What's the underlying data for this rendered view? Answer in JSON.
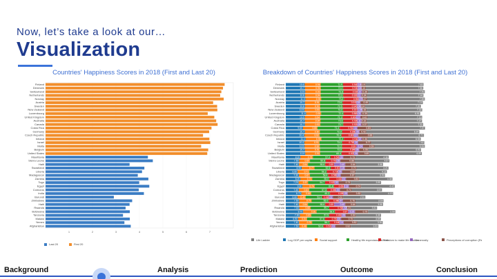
{
  "header": {
    "subtitle": "Now, let’s take a look at our…",
    "title": "Visualization"
  },
  "nav": {
    "items": [
      "Background",
      "Analysis",
      "Prediction",
      "Outcome",
      "Conclusion"
    ]
  },
  "colors": {
    "first20": "#f28e2b",
    "last20": "#3b7dc4",
    "components": [
      "#7f7f7f",
      "#1f77b4",
      "#ff7f0e",
      "#2ca02c",
      "#d62728",
      "#9467bd",
      "#8c564b"
    ]
  },
  "chart_data": [
    {
      "type": "bar",
      "orientation": "horizontal",
      "title": "Countries' Happiness Scores in 2018 (First and Last 20)",
      "xlim": [
        0,
        8
      ],
      "xticks": [
        1,
        2,
        3,
        4,
        5,
        6,
        7
      ],
      "legend_placement": "bottom-left",
      "series": [
        {
          "name": "Last 20",
          "color": "#3b7dc4"
        },
        {
          "name": "First 20",
          "color": "#f28e2b"
        }
      ],
      "categories": [
        "Finland",
        "Denmark",
        "Switzerland",
        "Netherlands",
        "Norway",
        "Austria",
        "Sweden",
        "New Zealand",
        "Luxembourg",
        "United Kingdom",
        "Australia",
        "Canada",
        "Costa Rica",
        "Germany",
        "Czech Republic",
        "Ireland",
        "Israel",
        "Malta",
        "Belgium",
        "United States",
        "Mauritania",
        "Sierra Leone",
        "Haiti",
        "Swaziland",
        "Liberia",
        "Madagascar",
        "Zambia",
        "Togo",
        "Egypt",
        "Comoros",
        "India",
        "Burundi",
        "Zimbabwe",
        "Haiti",
        "Rwanda",
        "Botswana",
        "Tanzania",
        "Malawi",
        "Yemen",
        "Afghanistan"
      ],
      "values": [
        7.63,
        7.56,
        7.49,
        7.44,
        7.59,
        7.14,
        7.31,
        7.32,
        6.91,
        7.19,
        7.27,
        7.33,
        7.07,
        6.97,
        6.71,
        6.98,
        7.02,
        6.63,
        6.93,
        6.89,
        4.36,
        4.57,
        3.58,
        4.21,
        4.11,
        3.93,
        4.38,
        3.99,
        4.42,
        3.97,
        4.19,
        2.91,
        3.69,
        3.58,
        3.41,
        3.59,
        3.3,
        3.59,
        3.36,
        3.63
      ]
    },
    {
      "type": "bar",
      "orientation": "horizontal",
      "stacked": true,
      "title": "Breakdown of Countries' Happiness Scores in 2018 (First and Last 20)",
      "legend_placement": "bottom",
      "categories": [
        "Finland",
        "Denmark",
        "Switzerland",
        "Netherlands",
        "Norway",
        "Austria",
        "Sweden",
        "New Zealand",
        "Luxembourg",
        "United Kingdom",
        "Australia",
        "Canada",
        "Costa Rica",
        "Germany",
        "Czech Republic",
        "Ireland",
        "Israel",
        "Malta",
        "Belgium",
        "United States",
        "Mauritania",
        "Sierra Leone",
        "Haiti",
        "Swaziland",
        "Liberia",
        "Madagascar",
        "Zambia",
        "Togo",
        "Egypt",
        "Comoros",
        "India",
        "Burundi",
        "Zimbabwe",
        "Haiti",
        "Rwanda",
        "Botswana",
        "Tanzania",
        "Malawi",
        "Yemen",
        "Afghanistan"
      ],
      "series": [
        {
          "name": "Life Ladder",
          "values": [
            7.63,
            7.56,
            7.49,
            7.44,
            7.59,
            7.14,
            7.31,
            7.32,
            6.91,
            7.19,
            7.27,
            7.33,
            7.07,
            6.97,
            6.71,
            6.98,
            7.02,
            6.63,
            6.93,
            6.89,
            4.36,
            4.57,
            3.58,
            4.21,
            4.11,
            3.93,
            4.38,
            3.99,
            4.42,
            3.97,
            4.19,
            2.91,
            3.69,
            3.58,
            3.41,
            3.59,
            3.3,
            3.59,
            3.36,
            3.63
          ]
        },
        {
          "name": "Log GDP per capita",
          "values": [
            10.6,
            10.7,
            10.9,
            10.8,
            11.0,
            10.7,
            10.8,
            10.5,
            11.4,
            10.6,
            10.7,
            10.7,
            9.6,
            10.7,
            10.4,
            11.1,
            10.4,
            10.5,
            10.7,
            10.9,
            8.2,
            7.5,
            7.4,
            8.9,
            6.6,
            7.3,
            8.2,
            7.2,
            9.3,
            7.3,
            8.7,
            6.6,
            7.5,
            7.4,
            7.6,
            9.7,
            7.9,
            6.9,
            7.4,
            7.5
          ]
        },
        {
          "name": "Social support",
          "values": [
            0.96,
            0.96,
            0.93,
            0.94,
            0.95,
            0.91,
            0.91,
            0.95,
            0.9,
            0.94,
            0.94,
            0.93,
            0.88,
            0.9,
            0.92,
            0.95,
            0.91,
            0.92,
            0.91,
            0.9,
            0.75,
            0.65,
            0.54,
            0.77,
            0.71,
            0.67,
            0.71,
            0.57,
            0.74,
            0.63,
            0.6,
            0.49,
            0.75,
            0.54,
            0.68,
            0.81,
            0.69,
            0.54,
            0.79,
            0.48
          ]
        },
        {
          "name": "Healthy life expectancy at birth",
          "values": [
            71.9,
            72.2,
            73.8,
            72.3,
            73.2,
            72.6,
            72.6,
            73.3,
            72.4,
            72.3,
            73.6,
            73.7,
            71.4,
            72.0,
            70.4,
            72.2,
            73.2,
            72.2,
            72.0,
            68.4,
            57.0,
            50.6,
            55.6,
            52.6,
            56.3,
            58.4,
            55.0,
            54.7,
            61.8,
            57.3,
            60.3,
            53.4,
            55.0,
            55.6,
            59.7,
            58.9,
            57.5,
            57.6,
            56.7,
            52.6
          ]
        },
        {
          "name": "Freedom to make life choices",
          "values": [
            0.94,
            0.94,
            0.93,
            0.92,
            0.96,
            0.91,
            0.94,
            0.93,
            0.89,
            0.86,
            0.92,
            0.92,
            0.9,
            0.86,
            0.8,
            0.91,
            0.78,
            0.93,
            0.84,
            0.82,
            0.57,
            0.7,
            0.59,
            0.6,
            0.73,
            0.56,
            0.82,
            0.62,
            0.66,
            0.58,
            0.89,
            0.43,
            0.66,
            0.59,
            0.9,
            0.87,
            0.81,
            0.79,
            0.64,
            0.52
          ]
        },
        {
          "name": "Generosity",
          "values": [
            -0.14,
            0.02,
            0.1,
            0.11,
            0.07,
            0.08,
            0.09,
            0.19,
            -0.03,
            0.17,
            0.11,
            0.09,
            -0.11,
            0.06,
            -0.17,
            0.12,
            0.1,
            0.24,
            -0.06,
            0.08,
            -0.09,
            0.08,
            0.4,
            -0.18,
            0.05,
            -0.03,
            0.04,
            0.0,
            -0.18,
            0.03,
            0.05,
            -0.02,
            -0.07,
            0.4,
            -0.02,
            -0.25,
            0.06,
            0.05,
            -0.14,
            0.03
          ]
        },
        {
          "name": "Perceptions of corruption (Reversed)",
          "values": [
            0.19,
            0.13,
            0.36,
            0.34,
            0.27,
            0.49,
            0.24,
            0.18,
            0.39,
            0.42,
            0.32,
            0.37,
            0.83,
            0.42,
            0.88,
            0.36,
            0.77,
            0.69,
            0.55,
            0.69,
            0.73,
            0.86,
            0.64,
            0.7,
            0.82,
            0.87,
            0.8,
            0.73,
            0.74,
            0.71,
            0.82,
            0.62,
            0.76,
            0.64,
            0.23,
            0.79,
            0.62,
            0.75,
            0.82,
            0.92
          ]
        }
      ]
    }
  ]
}
